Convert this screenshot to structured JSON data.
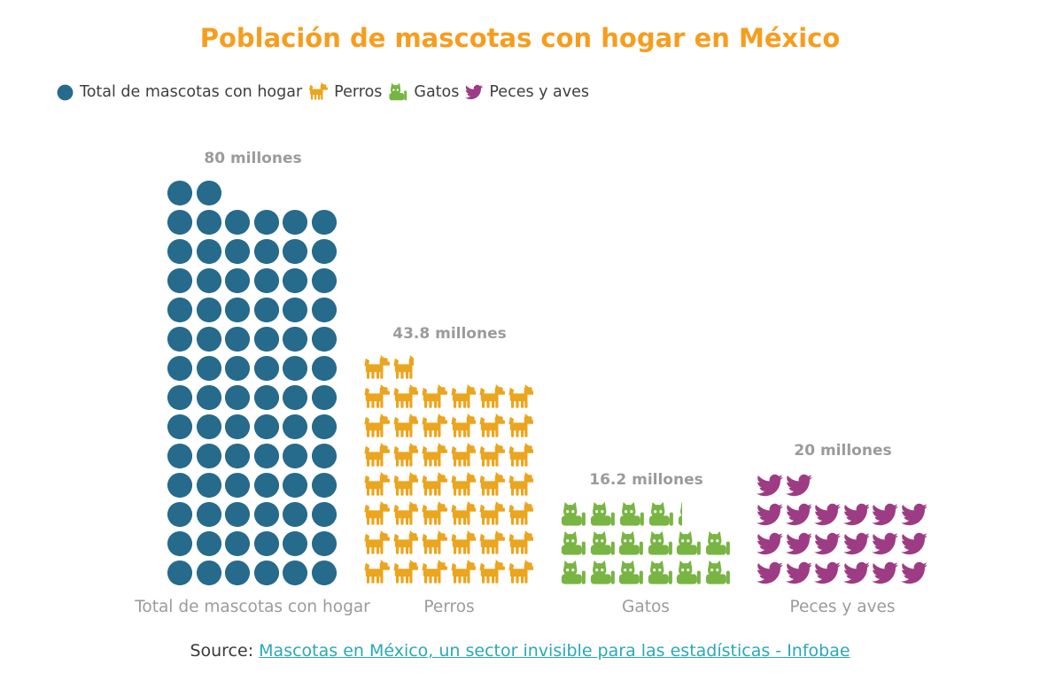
{
  "title": "Población de mascotas con hogar en México",
  "legend": {
    "items": [
      {
        "label": "Total de mascotas con hogar",
        "icon": "circle-icon",
        "color": "#266a8c"
      },
      {
        "label": "Perros",
        "icon": "dog-icon",
        "color": "#eba51e"
      },
      {
        "label": "Gatos",
        "icon": "cat-icon",
        "color": "#78b543"
      },
      {
        "label": "Peces y aves",
        "icon": "bird-icon",
        "color": "#9d3c84"
      }
    ]
  },
  "chart_data": {
    "type": "pictogram-bar",
    "title": "Población de mascotas con hogar en México",
    "unit": "millones",
    "icon_value": 1,
    "columns": 6,
    "legend_position": "top-left",
    "categories": [
      "Total de mascotas con hogar",
      "Perros",
      "Gatos",
      "Peces y aves"
    ],
    "series": [
      {
        "name": "Total de mascotas con hogar",
        "value": 80,
        "value_label": "80 millones",
        "icon": "circle",
        "color": "#266a8c"
      },
      {
        "name": "Perros",
        "value": 43.8,
        "value_label": "43.8 millones",
        "icon": "dog",
        "color": "#eba51e"
      },
      {
        "name": "Gatos",
        "value": 16.2,
        "value_label": "16.2 millones",
        "icon": "cat",
        "color": "#78b543"
      },
      {
        "name": "Peces y aves",
        "value": 20,
        "value_label": "20 millones",
        "icon": "bird",
        "color": "#9d3c84"
      }
    ]
  },
  "footer": {
    "source_label": "Source:",
    "link_text": "Mascotas en México, un sector invisible para las estadísticas - Infobae"
  },
  "colors": {
    "title": "#f79d1e",
    "label_gray": "#9b9b9b",
    "link_teal": "#2ba8b5"
  }
}
